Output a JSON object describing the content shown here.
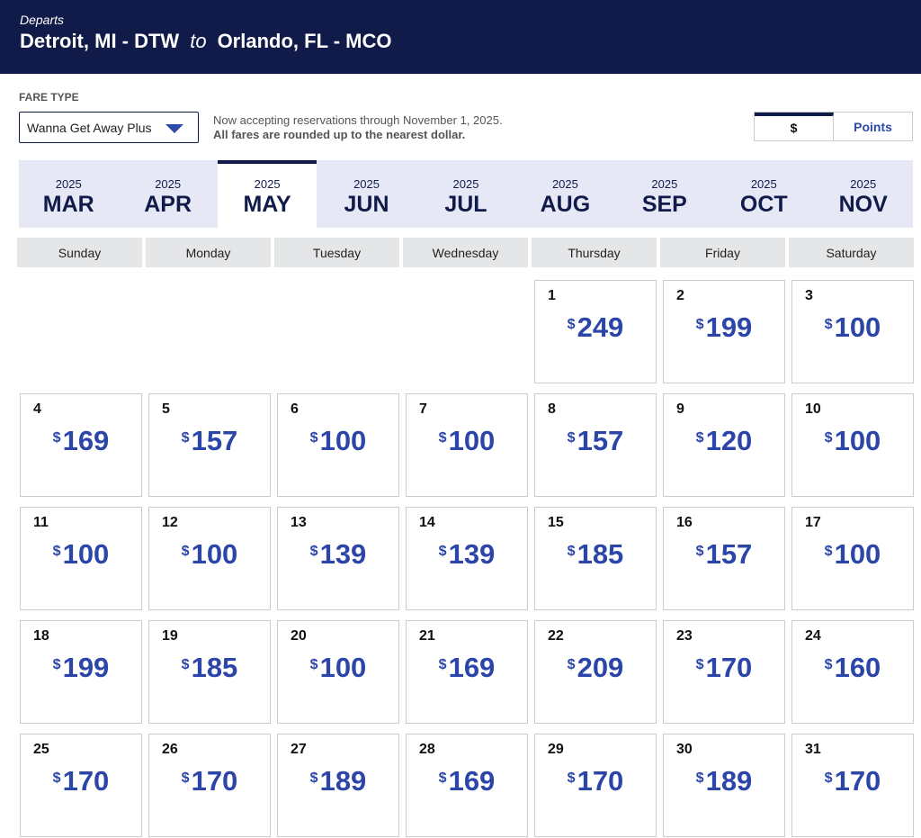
{
  "header": {
    "label": "Departs",
    "origin": "Detroit, MI - DTW",
    "connector": "to",
    "destination": "Orlando, FL - MCO"
  },
  "fare_type": {
    "label": "FARE TYPE",
    "selected": "Wanna Get Away Plus"
  },
  "notice": {
    "line1": "Now accepting reservations through November 1, 2025.",
    "line2": "All fares are rounded up to the nearest dollar."
  },
  "currency_toggle": {
    "options": [
      "$",
      "Points"
    ],
    "selected": 0
  },
  "months": {
    "selected": 2,
    "items": [
      {
        "year": "2025",
        "month": "MAR"
      },
      {
        "year": "2025",
        "month": "APR"
      },
      {
        "year": "2025",
        "month": "MAY"
      },
      {
        "year": "2025",
        "month": "JUN"
      },
      {
        "year": "2025",
        "month": "JUL"
      },
      {
        "year": "2025",
        "month": "AUG"
      },
      {
        "year": "2025",
        "month": "SEP"
      },
      {
        "year": "2025",
        "month": "OCT"
      },
      {
        "year": "2025",
        "month": "NOV"
      }
    ]
  },
  "calendar": {
    "currency_symbol": "$",
    "weekdays": [
      "Sunday",
      "Monday",
      "Tuesday",
      "Wednesday",
      "Thursday",
      "Friday",
      "Saturday"
    ],
    "weeks": [
      [
        null,
        null,
        null,
        null,
        {
          "day": 1,
          "price": 249
        },
        {
          "day": 2,
          "price": 199
        },
        {
          "day": 3,
          "price": 100
        }
      ],
      [
        {
          "day": 4,
          "price": 169
        },
        {
          "day": 5,
          "price": 157
        },
        {
          "day": 6,
          "price": 100
        },
        {
          "day": 7,
          "price": 100
        },
        {
          "day": 8,
          "price": 157
        },
        {
          "day": 9,
          "price": 120
        },
        {
          "day": 10,
          "price": 100
        }
      ],
      [
        {
          "day": 11,
          "price": 100
        },
        {
          "day": 12,
          "price": 100
        },
        {
          "day": 13,
          "price": 139
        },
        {
          "day": 14,
          "price": 139
        },
        {
          "day": 15,
          "price": 185
        },
        {
          "day": 16,
          "price": 157
        },
        {
          "day": 17,
          "price": 100
        }
      ],
      [
        {
          "day": 18,
          "price": 199
        },
        {
          "day": 19,
          "price": 185
        },
        {
          "day": 20,
          "price": 100
        },
        {
          "day": 21,
          "price": 169
        },
        {
          "day": 22,
          "price": 209
        },
        {
          "day": 23,
          "price": 170
        },
        {
          "day": 24,
          "price": 160
        }
      ],
      [
        {
          "day": 25,
          "price": 170
        },
        {
          "day": 26,
          "price": 170
        },
        {
          "day": 27,
          "price": 189
        },
        {
          "day": 28,
          "price": 169
        },
        {
          "day": 29,
          "price": 170
        },
        {
          "day": 30,
          "price": 189
        },
        {
          "day": 31,
          "price": 170
        }
      ]
    ]
  }
}
